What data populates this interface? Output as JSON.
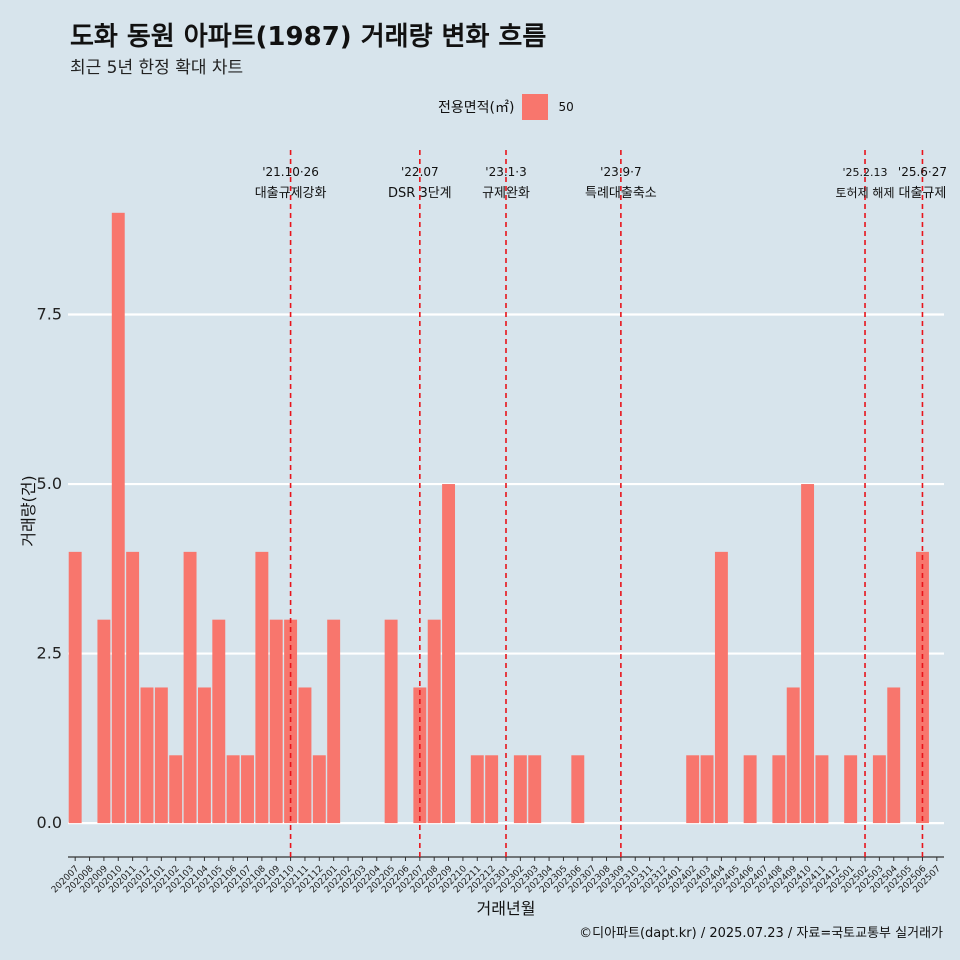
{
  "header": {
    "title": "도화 동원 아파트(1987) 거래량 변화 흐름",
    "subtitle": "최근 5년 한정 확대 차트"
  },
  "legend": {
    "title": "전용면적(㎡)",
    "label": "50",
    "color": "#f8766d"
  },
  "caption": "©디아파트(dapt.kr) / 2025.07.23 / 자료=국토교통부 실거래가",
  "chart_data": {
    "type": "bar",
    "xlabel": "거래년월",
    "ylabel": "거래량(건)",
    "ylim": [
      -0.5,
      10
    ],
    "yticks": [
      0,
      2.5,
      5,
      7.5
    ],
    "ytick_labels": [
      "0.0",
      "2.5",
      "5.0",
      "7.5"
    ],
    "grid": true,
    "legend_position": "top",
    "categories": [
      "202007",
      "202008",
      "202009",
      "202010",
      "202011",
      "202012",
      "202101",
      "202102",
      "202103",
      "202104",
      "202105",
      "202106",
      "202107",
      "202108",
      "202109",
      "202110",
      "202111",
      "202112",
      "202201",
      "202202",
      "202203",
      "202204",
      "202205",
      "202206",
      "202207",
      "202208",
      "202209",
      "202210",
      "202211",
      "202212",
      "202301",
      "202302",
      "202303",
      "202304",
      "202305",
      "202306",
      "202307",
      "202308",
      "202309",
      "202310",
      "202311",
      "202312",
      "202401",
      "202402",
      "202403",
      "202404",
      "202405",
      "202406",
      "202407",
      "202408",
      "202409",
      "202410",
      "202411",
      "202412",
      "202501",
      "202502",
      "202503",
      "202504",
      "202505",
      "202506",
      "202507"
    ],
    "series": [
      {
        "name": "50",
        "values": [
          4,
          0,
          3,
          9,
          4,
          2,
          2,
          1,
          4,
          2,
          3,
          1,
          1,
          4,
          3,
          3,
          2,
          1,
          3,
          0,
          0,
          0,
          3,
          0,
          2,
          3,
          5,
          0,
          1,
          1,
          0,
          1,
          1,
          0,
          0,
          1,
          0,
          0,
          0,
          0,
          0,
          0,
          0,
          1,
          1,
          4,
          0,
          1,
          0,
          1,
          2,
          5,
          1,
          0,
          1,
          0,
          1,
          2,
          0,
          4,
          0
        ]
      }
    ],
    "annotations": [
      {
        "category": "202110",
        "date": "'21.10·26",
        "label": "대출규제강화"
      },
      {
        "category": "202207",
        "date": "'22.07",
        "label": "DSR 3단계"
      },
      {
        "category": "202301",
        "date": "'23.1·3",
        "label": "규제완화"
      },
      {
        "category": "202309",
        "date": "'23.9·7",
        "label": "특례대출축소"
      },
      {
        "category": "202502",
        "date": "'25.2.13",
        "label": "토허제 해제"
      },
      {
        "category": "202506",
        "date": "'25.6·27",
        "label": "대출규제"
      }
    ]
  }
}
